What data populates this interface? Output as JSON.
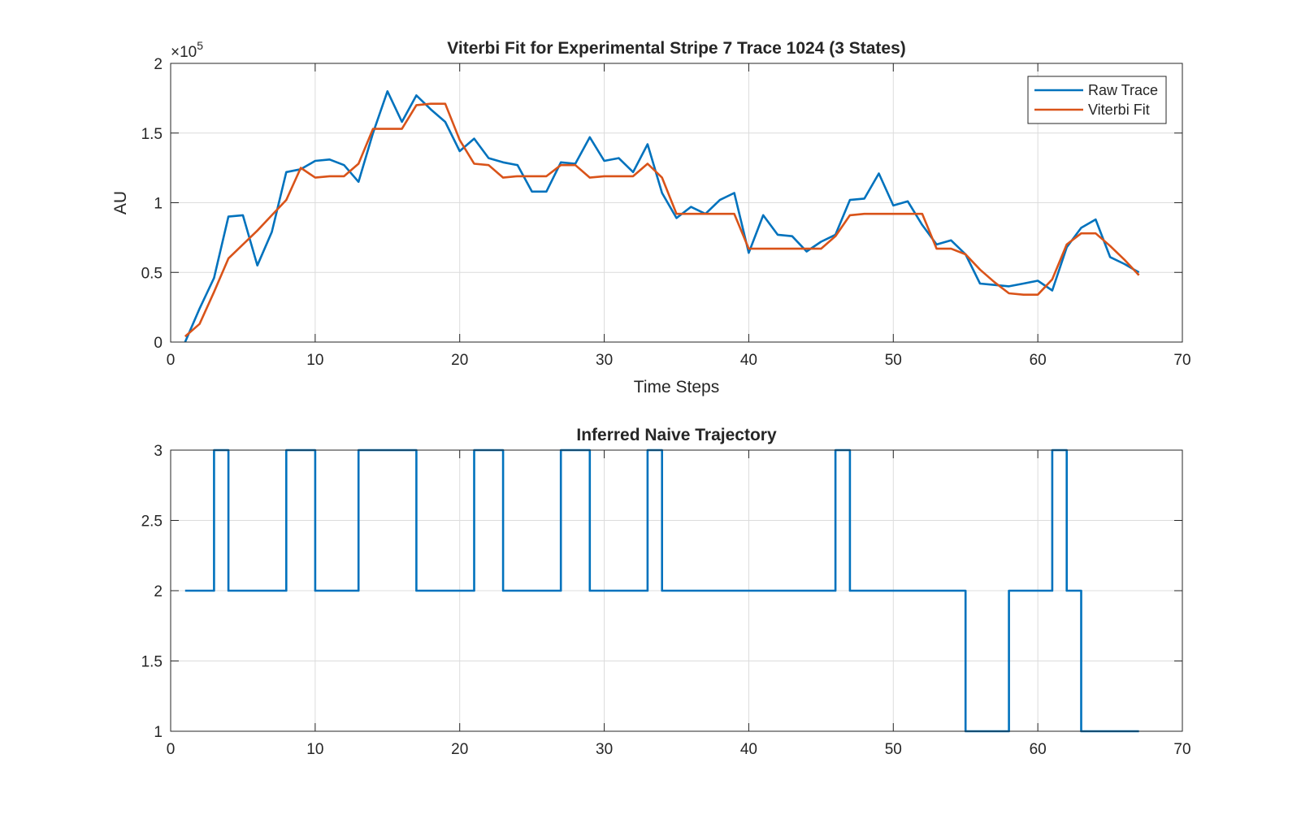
{
  "chart_data": [
    {
      "type": "line",
      "title": "Viterbi Fit for Experimental Stripe 7 Trace 1024 (3 States)",
      "xlabel": "Time Steps",
      "ylabel": "AU",
      "xlim": [
        0,
        70
      ],
      "ylim": [
        0,
        200000
      ],
      "x_ticks": [
        "0",
        "10",
        "20",
        "30",
        "40",
        "50",
        "60",
        "70"
      ],
      "y_ticks": [
        "0",
        "0.5",
        "1",
        "1.5",
        "2"
      ],
      "y_exponent_base": "×10",
      "y_exponent_power": "5",
      "grid": true,
      "legend_position": "top-right",
      "x": [
        1,
        2,
        3,
        4,
        5,
        6,
        7,
        8,
        9,
        10,
        11,
        12,
        13,
        14,
        15,
        16,
        17,
        18,
        19,
        20,
        21,
        22,
        23,
        24,
        25,
        26,
        27,
        28,
        29,
        30,
        31,
        32,
        33,
        34,
        35,
        36,
        37,
        38,
        39,
        40,
        41,
        42,
        43,
        44,
        45,
        46,
        47,
        48,
        49,
        50,
        51,
        52,
        53,
        54,
        55,
        56,
        57,
        58,
        59,
        60,
        61,
        62,
        63,
        64,
        65,
        66,
        67
      ],
      "series": [
        {
          "name": "Raw Trace",
          "color": "#0072BD",
          "values": [
            0,
            24000,
            46000,
            90000,
            91000,
            55000,
            79000,
            122000,
            124000,
            130000,
            131000,
            127000,
            115000,
            150000,
            180000,
            158000,
            177000,
            167000,
            158000,
            137000,
            146000,
            132000,
            129000,
            127000,
            108000,
            108000,
            129000,
            128000,
            147000,
            130000,
            132000,
            122000,
            142000,
            107000,
            89000,
            97000,
            92000,
            102000,
            107000,
            64000,
            91000,
            77000,
            76000,
            65000,
            72000,
            77000,
            102000,
            103000,
            121000,
            98000,
            101000,
            84000,
            70000,
            73000,
            63000,
            42000,
            41000,
            40000,
            42000,
            44000,
            37000,
            68000,
            82000,
            88000,
            61000,
            56000,
            50000
          ]
        },
        {
          "name": "Viterbi Fit",
          "color": "#D95319",
          "values": [
            4000,
            13000,
            36000,
            60000,
            70000,
            80000,
            91000,
            102000,
            125000,
            118000,
            119000,
            119000,
            128000,
            153000,
            153000,
            153000,
            170000,
            171000,
            171000,
            145000,
            128000,
            127000,
            118000,
            119000,
            119000,
            119000,
            127000,
            127000,
            118000,
            119000,
            119000,
            119000,
            128000,
            118000,
            92000,
            92000,
            92000,
            92000,
            92000,
            67000,
            67000,
            67000,
            67000,
            67000,
            67000,
            76000,
            91000,
            92000,
            92000,
            92000,
            92000,
            92000,
            67000,
            67000,
            63000,
            52000,
            43000,
            35000,
            34000,
            34000,
            45000,
            70000,
            78000,
            78000,
            69000,
            59000,
            48000
          ]
        }
      ]
    },
    {
      "type": "line",
      "step": true,
      "title": "Inferred Naive Trajectory",
      "xlabel": "",
      "ylabel": "",
      "xlim": [
        0,
        70
      ],
      "ylim": [
        1,
        3
      ],
      "x_ticks": [
        "0",
        "10",
        "20",
        "30",
        "40",
        "50",
        "60",
        "70"
      ],
      "y_ticks": [
        "1",
        "1.5",
        "2",
        "2.5",
        "3"
      ],
      "grid": true,
      "x": [
        1,
        2,
        3,
        4,
        5,
        6,
        7,
        8,
        9,
        10,
        11,
        12,
        13,
        14,
        15,
        16,
        17,
        18,
        19,
        20,
        21,
        22,
        23,
        24,
        25,
        26,
        27,
        28,
        29,
        30,
        31,
        32,
        33,
        34,
        35,
        36,
        37,
        38,
        39,
        40,
        41,
        42,
        43,
        44,
        45,
        46,
        47,
        48,
        49,
        50,
        51,
        52,
        53,
        54,
        55,
        56,
        57,
        58,
        59,
        60,
        61,
        62,
        63,
        64,
        65,
        66,
        67
      ],
      "series": [
        {
          "color": "#0072BD",
          "values": [
            2,
            2,
            3,
            2,
            2,
            2,
            2,
            3,
            3,
            2,
            2,
            2,
            3,
            3,
            3,
            3,
            2,
            2,
            2,
            2,
            3,
            3,
            2,
            2,
            2,
            2,
            3,
            3,
            2,
            2,
            2,
            2,
            3,
            2,
            2,
            2,
            2,
            2,
            2,
            2,
            2,
            2,
            2,
            2,
            2,
            3,
            2,
            2,
            2,
            2,
            2,
            2,
            2,
            2,
            1,
            1,
            1,
            2,
            2,
            2,
            3,
            2,
            1,
            1,
            1,
            1,
            1
          ]
        }
      ]
    }
  ]
}
